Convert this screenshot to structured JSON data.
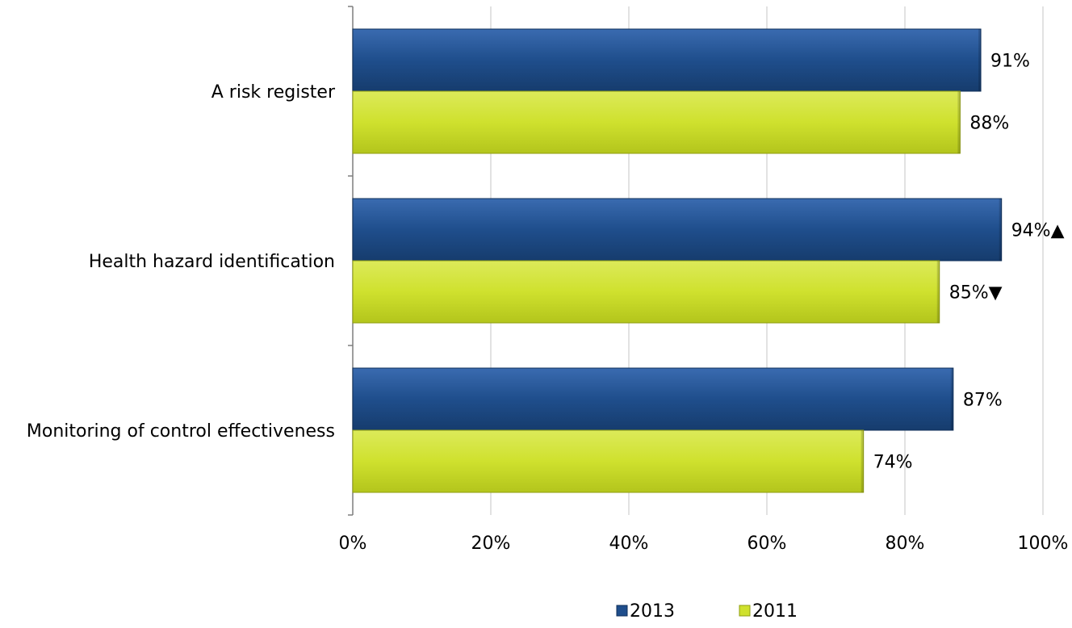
{
  "chart_data": {
    "type": "bar",
    "orientation": "horizontal",
    "categories": [
      "A risk register",
      "Health hazard identification",
      "Monitoring of control effectiveness"
    ],
    "series": [
      {
        "name": "2013",
        "values": [
          91,
          94,
          87
        ],
        "labels": [
          "91%",
          "94%▲",
          "87%"
        ],
        "color": "#1f4e8c"
      },
      {
        "name": "2011",
        "values": [
          88,
          85,
          74
        ],
        "labels": [
          "88%",
          "85%▼",
          "74%"
        ],
        "color": "#cfe12e"
      }
    ],
    "xlim": [
      0,
      100
    ],
    "x_ticks": [
      0,
      20,
      40,
      60,
      80,
      100
    ],
    "x_tick_labels": [
      "0%",
      "20%",
      "40%",
      "60%",
      "80%",
      "100%"
    ],
    "grid": true,
    "legend_position": "bottom"
  }
}
